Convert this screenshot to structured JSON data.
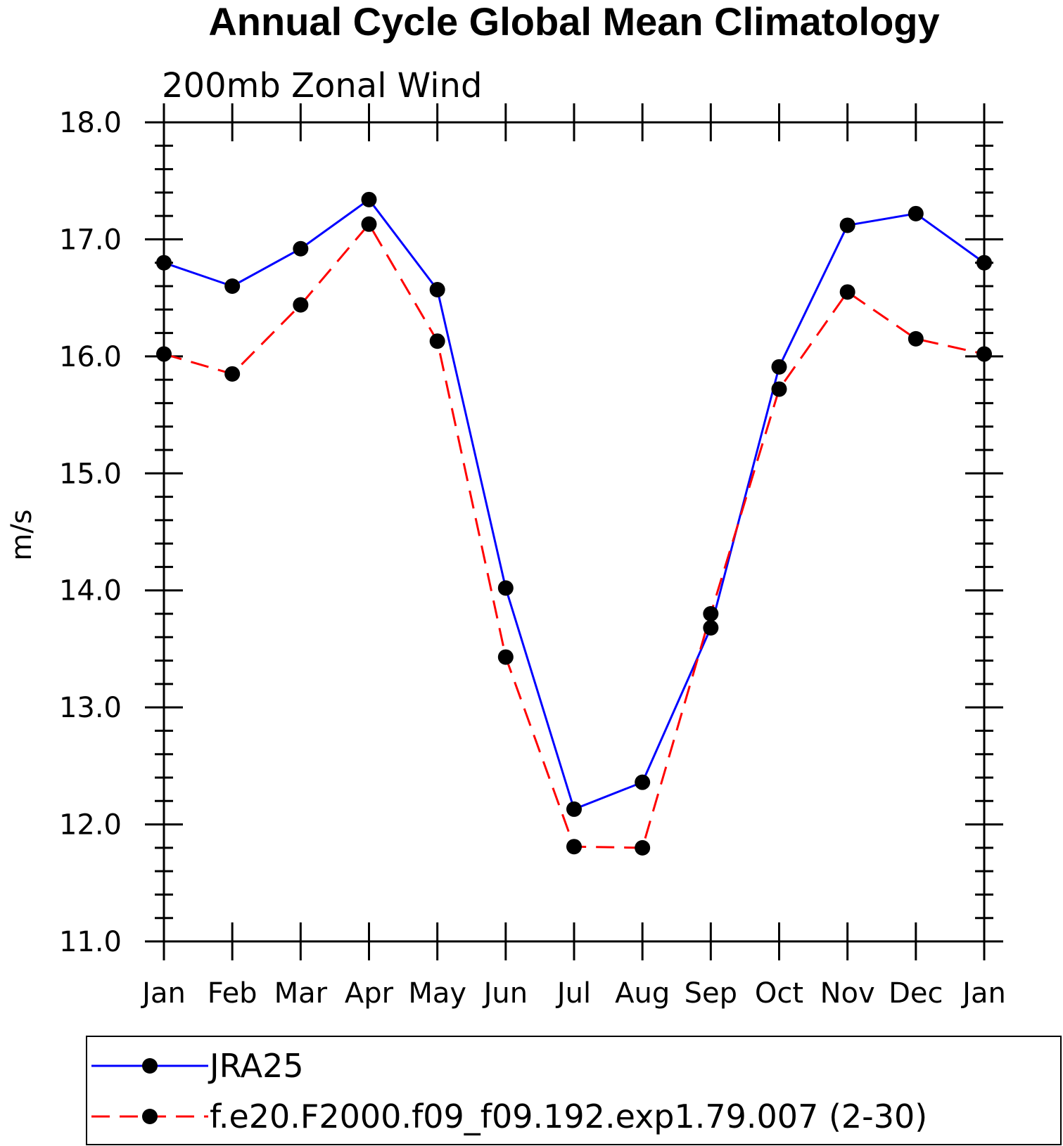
{
  "chart_data": {
    "type": "line",
    "title": "Annual Cycle Global Mean Climatology",
    "subtitle": "200mb Zonal Wind",
    "xlabel": "",
    "ylabel": "m/s",
    "categories": [
      "Jan",
      "Feb",
      "Mar",
      "Apr",
      "May",
      "Jun",
      "Jul",
      "Aug",
      "Sep",
      "Oct",
      "Nov",
      "Dec",
      "Jan"
    ],
    "ylim": [
      11.0,
      18.0
    ],
    "yticks": [
      "11.0",
      "12.0",
      "13.0",
      "14.0",
      "15.0",
      "16.0",
      "17.0",
      "18.0"
    ],
    "grid": false,
    "legend_position": "bottom",
    "series": [
      {
        "name": "JRA25",
        "color": "#0000ff",
        "dash": "solid",
        "marker": "filled-circle",
        "values": [
          16.8,
          16.6,
          16.92,
          17.34,
          16.57,
          14.02,
          12.13,
          12.36,
          13.68,
          15.91,
          17.12,
          17.22,
          16.8
        ]
      },
      {
        "name": "f.e20.F2000.f09_f09.192.exp1.79.007 (2-30)",
        "color": "#ff0000",
        "dash": "dashed",
        "marker": "filled-circle",
        "values": [
          16.02,
          15.85,
          16.44,
          17.13,
          16.13,
          13.43,
          11.81,
          11.8,
          13.8,
          15.72,
          16.55,
          16.15,
          16.02
        ]
      }
    ]
  }
}
